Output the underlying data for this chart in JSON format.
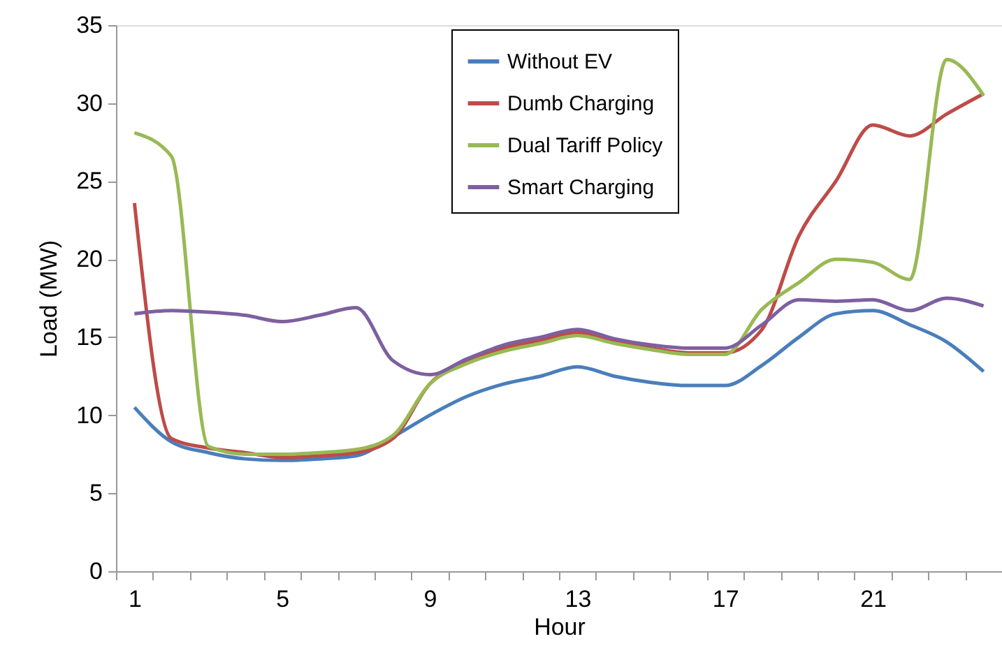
{
  "chart_data": {
    "type": "line",
    "xlabel": "Hour",
    "ylabel": "Load (MW)",
    "categories": [
      "1",
      null,
      null,
      null,
      "5",
      null,
      null,
      null,
      "9",
      null,
      null,
      null,
      "13",
      null,
      null,
      null,
      "17",
      null,
      null,
      null,
      "21",
      null,
      null,
      null
    ],
    "ylim": [
      0,
      35
    ],
    "yticks": [
      0,
      5,
      10,
      15,
      20,
      25,
      30,
      35
    ],
    "grid": false,
    "legend": "top",
    "marker": "none",
    "line_style": "solid",
    "series": [
      {
        "name": "Without EV",
        "color": "#4a7ebb",
        "values": [
          10.5,
          8.3,
          7.6,
          7.2,
          7.1,
          7.2,
          7.4,
          8.6,
          10.0,
          11.2,
          12.0,
          12.5,
          13.1,
          12.5,
          12.1,
          11.9,
          11.9,
          13.2,
          15.0,
          16.5,
          16.7,
          15.8,
          14.7,
          12.8
        ]
      },
      {
        "name": "Dumb Charging",
        "color": "#be4b48",
        "values": [
          23.6,
          8.5,
          7.9,
          7.6,
          7.3,
          7.4,
          7.6,
          8.5,
          12.0,
          13.5,
          14.3,
          14.8,
          15.3,
          14.7,
          14.3,
          14.0,
          14.0,
          15.5,
          21.5,
          25.0,
          28.6,
          27.9,
          29.3,
          30.6
        ]
      },
      {
        "name": "Dual Tariff Policy",
        "color": "#98b954",
        "values": [
          28.1,
          26.6,
          8.0,
          7.5,
          7.5,
          7.6,
          7.8,
          8.7,
          12.0,
          13.3,
          14.1,
          14.6,
          15.1,
          14.6,
          14.2,
          13.9,
          13.9,
          16.8,
          18.5,
          20.0,
          19.8,
          18.7,
          32.8,
          30.5
        ]
      },
      {
        "name": "Smart Charging",
        "color": "#7d60a0",
        "values": [
          16.5,
          16.7,
          16.6,
          16.4,
          16.0,
          16.4,
          16.9,
          13.5,
          12.6,
          13.6,
          14.5,
          15.0,
          15.5,
          14.9,
          14.5,
          14.3,
          14.3,
          15.8,
          17.4,
          17.3,
          17.4,
          16.7,
          17.5,
          17.0
        ]
      }
    ]
  }
}
